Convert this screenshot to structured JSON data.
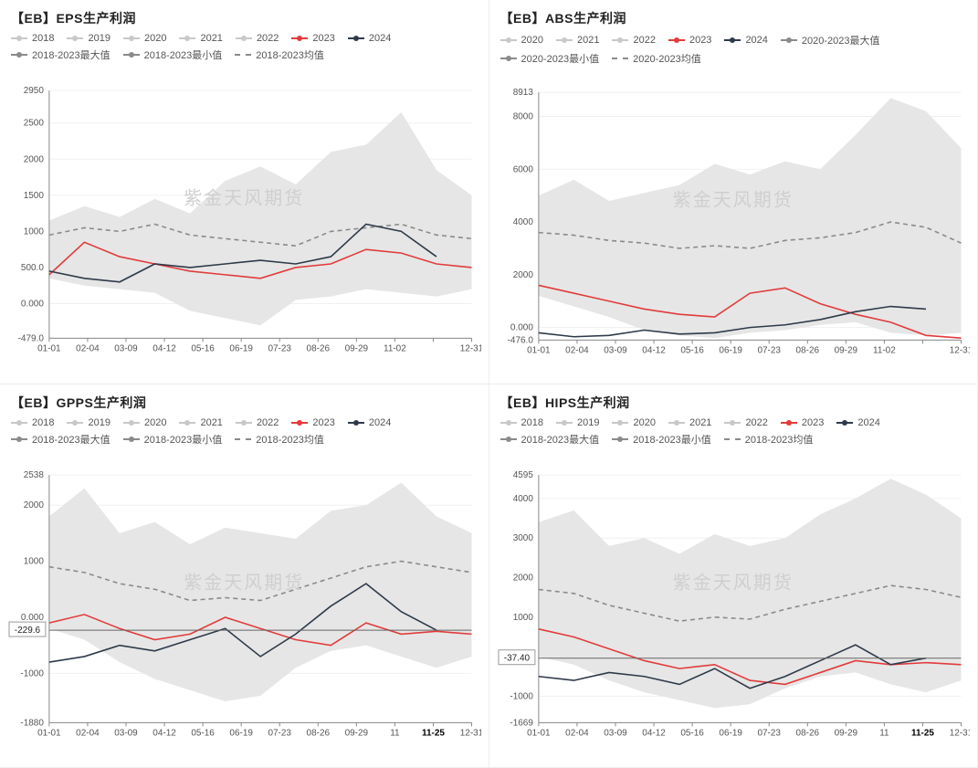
{
  "watermark_text": "紫金天风期货",
  "global": {
    "x_categories": [
      "01-01",
      "02-04",
      "03-09",
      "04-12",
      "05-16",
      "06-19",
      "07-23",
      "08-26",
      "09-29",
      "11-02",
      "",
      "12-31"
    ],
    "x_highlight_label": "11-25",
    "colors": {
      "inactive": "#c8c8c8",
      "s2023": "#e23b3b",
      "s2024": "#2e3a4a",
      "max": "#8a8a8a",
      "min": "#8a8a8a",
      "mean": "#8a8a8a",
      "band_fill": "#e6e6e6",
      "axis": "#888888",
      "grid": "#f0f0f0",
      "tick_text": "#555555",
      "bg": "#ffffff",
      "marker_line": "#666666"
    },
    "line_width": 1.6,
    "dash_pattern": "5,4",
    "title_fontsize": 14,
    "tick_fontsize": 10,
    "legend_fontsize": 11
  },
  "panels": [
    {
      "id": "eps",
      "title": "【EB】EPS生产利润",
      "type": "line-band",
      "ylim": [
        -479,
        2950
      ],
      "yticks": [
        -479,
        0,
        500,
        1000,
        1500,
        2000,
        2500,
        2950
      ],
      "ytick_labels": [
        "-479.0",
        "0.000",
        "500.0",
        "1000",
        "1500",
        "2000",
        "2500",
        "2950"
      ],
      "legend": [
        {
          "label": "2018",
          "color_key": "inactive",
          "style": "dot"
        },
        {
          "label": "2019",
          "color_key": "inactive",
          "style": "dot"
        },
        {
          "label": "2020",
          "color_key": "inactive",
          "style": "dot"
        },
        {
          "label": "2021",
          "color_key": "inactive",
          "style": "dot"
        },
        {
          "label": "2022",
          "color_key": "inactive",
          "style": "dot"
        },
        {
          "label": "2023",
          "color_key": "s2023",
          "style": "dot"
        },
        {
          "label": "2024",
          "color_key": "s2024",
          "style": "dot"
        },
        {
          "label": "2018-2023最大值",
          "color_key": "max",
          "style": "dot"
        },
        {
          "label": "2018-2023最小值",
          "color_key": "min",
          "style": "dot"
        },
        {
          "label": "2018-2023均值",
          "color_key": "mean",
          "style": "dash"
        }
      ],
      "band_upper": [
        1150,
        1350,
        1200,
        1450,
        1250,
        1700,
        1900,
        1650,
        2100,
        2200,
        2650,
        1850,
        1500
      ],
      "band_lower": [
        350,
        250,
        200,
        150,
        -100,
        -200,
        -300,
        50,
        100,
        200,
        150,
        100,
        200
      ],
      "series": {
        "mean": [
          950,
          1050,
          1000,
          1100,
          950,
          900,
          850,
          800,
          1000,
          1050,
          1100,
          950,
          900
        ],
        "s2023": [
          400,
          850,
          650,
          550,
          450,
          400,
          350,
          500,
          550,
          750,
          700,
          550,
          500
        ],
        "s2024": [
          450,
          350,
          300,
          550,
          500,
          550,
          600,
          550,
          650,
          1100,
          1000,
          650,
          null
        ]
      },
      "marker": null,
      "show_x_highlight": false
    },
    {
      "id": "abs",
      "title": "【EB】ABS生产利润",
      "type": "line-band",
      "ylim": [
        -476,
        8913
      ],
      "yticks": [
        -476,
        0,
        2000,
        4000,
        6000,
        8000,
        8913
      ],
      "ytick_labels": [
        "-476.0",
        "0.000",
        "2000",
        "4000",
        "6000",
        "8000",
        "8913"
      ],
      "legend": [
        {
          "label": "2020",
          "color_key": "inactive",
          "style": "dot"
        },
        {
          "label": "2021",
          "color_key": "inactive",
          "style": "dot"
        },
        {
          "label": "2022",
          "color_key": "inactive",
          "style": "dot"
        },
        {
          "label": "2023",
          "color_key": "s2023",
          "style": "dot"
        },
        {
          "label": "2024",
          "color_key": "s2024",
          "style": "dot"
        },
        {
          "label": "2020-2023最大值",
          "color_key": "max",
          "style": "dot"
        },
        {
          "label": "2020-2023最小值",
          "color_key": "min",
          "style": "dot"
        },
        {
          "label": "2020-2023均值",
          "color_key": "mean",
          "style": "dash"
        }
      ],
      "band_upper": [
        5000,
        5600,
        4800,
        5100,
        5400,
        6200,
        5800,
        6300,
        6000,
        7300,
        8700,
        8200,
        6800
      ],
      "band_lower": [
        1200,
        800,
        400,
        -100,
        -300,
        -400,
        -200,
        -100,
        100,
        200,
        -200,
        -300,
        -200
      ],
      "series": {
        "mean": [
          3600,
          3500,
          3300,
          3200,
          3000,
          3100,
          3000,
          3300,
          3400,
          3600,
          4000,
          3800,
          3200
        ],
        "s2023": [
          1600,
          1300,
          1000,
          700,
          500,
          400,
          1300,
          1500,
          900,
          500,
          200,
          -300,
          -400
        ],
        "s2024": [
          -200,
          -350,
          -300,
          -100,
          -250,
          -200,
          0,
          100,
          300,
          600,
          800,
          700,
          null
        ]
      },
      "marker": null,
      "show_x_highlight": false
    },
    {
      "id": "gpps",
      "title": "【EB】GPPS生产利润",
      "type": "line-band",
      "ylim": [
        -1880,
        2538
      ],
      "yticks": [
        -1880,
        -1000,
        0,
        1000,
        2000,
        2538
      ],
      "ytick_labels": [
        "-1880",
        "-1000",
        "0.000",
        "1000",
        "2000",
        "2538"
      ],
      "legend": [
        {
          "label": "2018",
          "color_key": "inactive",
          "style": "dot"
        },
        {
          "label": "2019",
          "color_key": "inactive",
          "style": "dot"
        },
        {
          "label": "2020",
          "color_key": "inactive",
          "style": "dot"
        },
        {
          "label": "2021",
          "color_key": "inactive",
          "style": "dot"
        },
        {
          "label": "2022",
          "color_key": "inactive",
          "style": "dot"
        },
        {
          "label": "2023",
          "color_key": "s2023",
          "style": "dot"
        },
        {
          "label": "2024",
          "color_key": "s2024",
          "style": "dot"
        },
        {
          "label": "2018-2023最大值",
          "color_key": "max",
          "style": "dot"
        },
        {
          "label": "2018-2023最小值",
          "color_key": "min",
          "style": "dot"
        },
        {
          "label": "2018-2023均值",
          "color_key": "mean",
          "style": "dash"
        }
      ],
      "band_upper": [
        1800,
        2300,
        1500,
        1700,
        1300,
        1600,
        1500,
        1400,
        1900,
        2000,
        2400,
        1800,
        1500
      ],
      "band_lower": [
        -200,
        -400,
        -800,
        -1100,
        -1300,
        -1500,
        -1400,
        -900,
        -600,
        -500,
        -700,
        -900,
        -700
      ],
      "series": {
        "mean": [
          900,
          800,
          600,
          500,
          300,
          350,
          300,
          500,
          700,
          900,
          1000,
          900,
          800
        ],
        "s2023": [
          -100,
          50,
          -200,
          -400,
          -300,
          0,
          -200,
          -400,
          -500,
          -100,
          -300,
          -250,
          -300
        ],
        "s2024": [
          -800,
          -700,
          -500,
          -600,
          -400,
          -200,
          -700,
          -300,
          200,
          600,
          100,
          -230,
          null
        ]
      },
      "marker": {
        "value": -229.6,
        "label": "-229.6"
      },
      "show_x_highlight": true
    },
    {
      "id": "hips",
      "title": "【EB】HIPS生产利润",
      "type": "line-band",
      "ylim": [
        -1669,
        4595
      ],
      "yticks": [
        -1669,
        -1000,
        0,
        1000,
        2000,
        3000,
        4000,
        4595
      ],
      "ytick_labels": [
        "-1669",
        "-1000",
        "0.000",
        "1000",
        "2000",
        "3000",
        "4000",
        "4595"
      ],
      "legend": [
        {
          "label": "2018",
          "color_key": "inactive",
          "style": "dot"
        },
        {
          "label": "2019",
          "color_key": "inactive",
          "style": "dot"
        },
        {
          "label": "2020",
          "color_key": "inactive",
          "style": "dot"
        },
        {
          "label": "2021",
          "color_key": "inactive",
          "style": "dot"
        },
        {
          "label": "2022",
          "color_key": "inactive",
          "style": "dot"
        },
        {
          "label": "2023",
          "color_key": "s2023",
          "style": "dot"
        },
        {
          "label": "2024",
          "color_key": "s2024",
          "style": "dot"
        },
        {
          "label": "2018-2023最大值",
          "color_key": "max",
          "style": "dot"
        },
        {
          "label": "2018-2023最小值",
          "color_key": "min",
          "style": "dot"
        },
        {
          "label": "2018-2023均值",
          "color_key": "mean",
          "style": "dash"
        }
      ],
      "band_upper": [
        3400,
        3700,
        2800,
        3000,
        2600,
        3100,
        2800,
        3000,
        3600,
        4000,
        4500,
        4100,
        3500
      ],
      "band_lower": [
        0,
        -200,
        -600,
        -900,
        -1100,
        -1300,
        -1200,
        -800,
        -500,
        -400,
        -700,
        -900,
        -600
      ],
      "series": {
        "mean": [
          1700,
          1600,
          1300,
          1100,
          900,
          1000,
          950,
          1200,
          1400,
          1600,
          1800,
          1700,
          1500
        ],
        "s2023": [
          700,
          500,
          200,
          -100,
          -300,
          -200,
          -600,
          -700,
          -400,
          -100,
          -200,
          -150,
          -200
        ],
        "s2024": [
          -500,
          -600,
          -400,
          -500,
          -700,
          -300,
          -800,
          -500,
          -100,
          300,
          -200,
          -37,
          null
        ]
      },
      "marker": {
        "value": -37.4,
        "label": "-37.40"
      },
      "show_x_highlight": true
    }
  ]
}
